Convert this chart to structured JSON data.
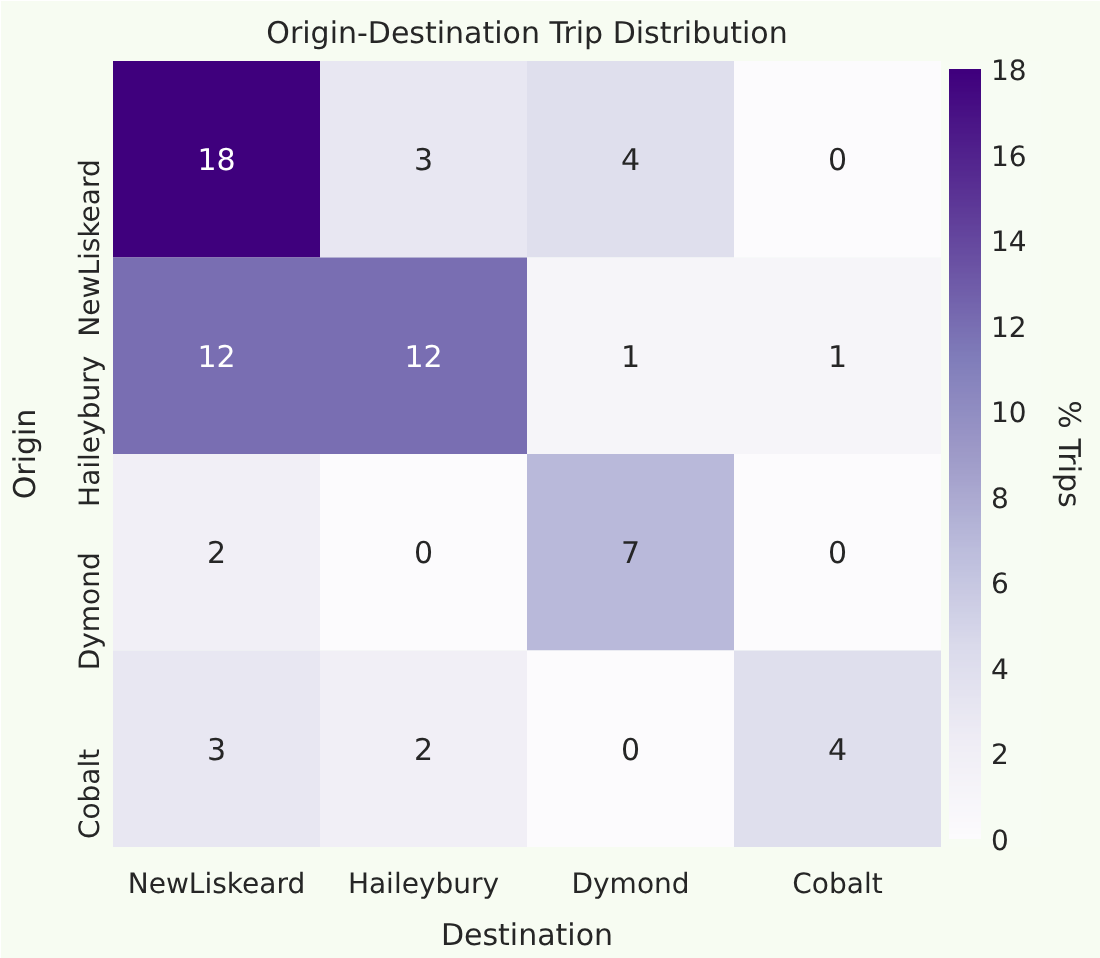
{
  "chart_data": {
    "type": "heatmap",
    "title": "Origin-Destination Trip Distribution",
    "xlabel": "Destination",
    "ylabel": "Origin",
    "clabel": "% Trips",
    "categories": [
      "NewLiskeard",
      "Haileybury",
      "Dymond",
      "Cobalt"
    ],
    "y_categories": [
      "NewLiskeard",
      "Haileybury",
      "Dymond",
      "Cobalt"
    ],
    "cells": [
      [
        18,
        3,
        4,
        0
      ],
      [
        12,
        12,
        1,
        1
      ],
      [
        2,
        0,
        7,
        0
      ],
      [
        3,
        2,
        0,
        4
      ]
    ],
    "clim": [
      0,
      18
    ],
    "cticks": [
      0,
      2,
      4,
      6,
      8,
      10,
      12,
      14,
      16,
      18
    ],
    "data_labels": true
  }
}
